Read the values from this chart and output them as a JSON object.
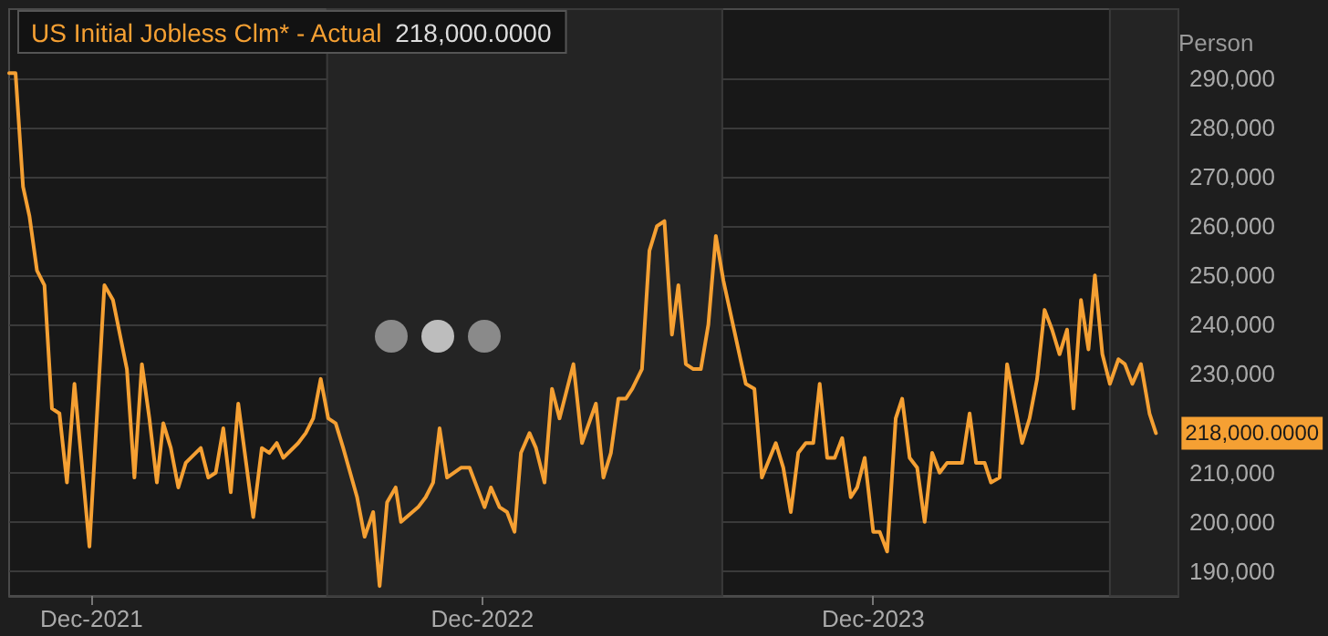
{
  "chart_data": {
    "type": "line",
    "ylabel": "Person",
    "legend": "top left",
    "grid": "y",
    "marker": "none",
    "line_style": "solid",
    "annotations": [
      "218,000.0000"
    ],
    "xlim": [
      "2021-09-15",
      "2024-09-11"
    ],
    "xticks": [
      {
        "value": "2021-12-01",
        "label": "Dec-2021"
      },
      {
        "value": "2022-12-01",
        "label": "Dec-2022"
      },
      {
        "value": "2023-12-01",
        "label": "Dec-2023"
      }
    ],
    "ylim": [
      185000,
      304000
    ],
    "yticks": [
      {
        "value": 190000,
        "label": "190,000"
      },
      {
        "value": 200000,
        "label": "200,000"
      },
      {
        "value": 210000,
        "label": "210,000"
      },
      {
        "value": 220000,
        "label": null
      },
      {
        "value": 230000,
        "label": "230,000"
      },
      {
        "value": 240000,
        "label": "240,000"
      },
      {
        "value": 250000,
        "label": "250,000"
      },
      {
        "value": 260000,
        "label": "260,000"
      },
      {
        "value": 270000,
        "label": "270,000"
      },
      {
        "value": 280000,
        "label": "280,000"
      },
      {
        "value": 290000,
        "label": "290,000"
      }
    ],
    "bands": [
      {
        "axis": "x",
        "from": "2022-07-09",
        "to": "2023-07-13",
        "color": "#242424"
      },
      {
        "axis": "x",
        "from": "2024-07-09",
        "to": "2024-09-11",
        "color": "#242424"
      }
    ],
    "series": [
      {
        "name": "US Initial Jobless Clm* - Actual",
        "color": "#f5a033",
        "x": [
          "2021-09-15",
          "2021-09-21",
          "2021-09-28",
          "2021-10-04",
          "2021-10-11",
          "2021-10-18",
          "2021-10-25",
          "2021-11-01",
          "2021-11-08",
          "2021-11-15",
          "2021-11-29",
          "2021-12-13",
          "2021-12-21",
          "2022-01-03",
          "2022-01-10",
          "2022-01-17",
          "2022-01-24",
          "2022-01-31",
          "2022-02-06",
          "2022-02-13",
          "2022-02-20",
          "2022-02-27",
          "2022-03-13",
          "2022-03-20",
          "2022-03-27",
          "2022-04-03",
          "2022-04-10",
          "2022-04-17",
          "2022-05-01",
          "2022-05-09",
          "2022-05-16",
          "2022-05-23",
          "2022-05-29",
          "2022-06-12",
          "2022-06-19",
          "2022-06-26",
          "2022-07-03",
          "2022-07-10",
          "2022-07-17",
          "2022-07-24",
          "2022-08-06",
          "2022-08-13",
          "2022-08-21",
          "2022-08-27",
          "2022-09-03",
          "2022-09-11",
          "2022-09-16",
          "2022-10-02",
          "2022-10-09",
          "2022-10-16",
          "2022-10-22",
          "2022-10-29",
          "2022-11-11",
          "2022-11-19",
          "2022-12-03",
          "2022-12-09",
          "2022-12-17",
          "2022-12-24",
          "2022-12-31",
          "2023-01-06",
          "2023-01-14",
          "2023-01-20",
          "2023-01-28",
          "2023-02-04",
          "2023-02-11",
          "2023-02-24",
          "2023-03-04",
          "2023-03-17",
          "2023-03-24",
          "2023-03-31",
          "2023-04-07",
          "2023-04-14",
          "2023-04-20",
          "2023-04-29",
          "2023-05-06",
          "2023-05-13",
          "2023-05-20",
          "2023-05-27",
          "2023-06-02",
          "2023-06-09",
          "2023-06-16",
          "2023-06-23",
          "2023-06-30",
          "2023-07-07",
          "2023-07-14",
          "2023-08-04",
          "2023-08-12",
          "2023-08-19",
          "2023-09-01",
          "2023-09-08",
          "2023-09-15",
          "2023-09-22",
          "2023-09-29",
          "2023-10-06",
          "2023-10-12",
          "2023-10-19",
          "2023-10-26",
          "2023-11-02",
          "2023-11-10",
          "2023-11-16",
          "2023-11-23",
          "2023-12-01",
          "2023-12-07",
          "2023-12-14",
          "2023-12-22",
          "2023-12-28",
          "2024-01-04",
          "2024-01-11",
          "2024-01-18",
          "2024-01-25",
          "2024-02-01",
          "2024-02-08",
          "2024-02-22",
          "2024-02-29",
          "2024-03-06",
          "2024-03-14",
          "2024-03-20",
          "2024-03-28",
          "2024-04-04",
          "2024-04-18",
          "2024-04-25",
          "2024-05-02",
          "2024-05-09",
          "2024-05-16",
          "2024-05-23",
          "2024-05-30",
          "2024-06-05",
          "2024-06-12",
          "2024-06-19",
          "2024-06-25",
          "2024-07-02",
          "2024-07-09",
          "2024-07-17",
          "2024-07-23",
          "2024-07-30",
          "2024-08-07",
          "2024-08-15",
          "2024-08-21"
        ],
        "values": [
          291000,
          291000,
          268000,
          262000,
          251000,
          248000,
          223000,
          222000,
          208000,
          228000,
          195000,
          248000,
          245000,
          231000,
          209000,
          232000,
          221000,
          208000,
          220000,
          215000,
          207000,
          212000,
          215000,
          209000,
          210000,
          219000,
          206000,
          224000,
          201000,
          215000,
          214000,
          216000,
          213000,
          216000,
          218000,
          221000,
          229000,
          221000,
          220000,
          215000,
          205000,
          197000,
          202000,
          187000,
          204000,
          207000,
          200000,
          203000,
          205000,
          208000,
          219000,
          209000,
          211000,
          211000,
          203000,
          207000,
          203000,
          202000,
          198000,
          214000,
          218000,
          215000,
          208000,
          227000,
          221000,
          232000,
          216000,
          224000,
          209000,
          214000,
          225000,
          225000,
          227000,
          231000,
          255000,
          260000,
          261000,
          238000,
          248000,
          232000,
          231000,
          231000,
          240000,
          258000,
          249000,
          228000,
          227000,
          209000,
          216000,
          211000,
          202000,
          214000,
          216000,
          216000,
          228000,
          213000,
          213000,
          217000,
          205000,
          207000,
          213000,
          198000,
          198000,
          194000,
          221000,
          225000,
          213000,
          211000,
          200000,
          214000,
          210000,
          212000,
          212000,
          222000,
          212000,
          212000,
          208000,
          209000,
          232000,
          216000,
          221000,
          229000,
          243000,
          239000,
          234000,
          239000,
          223000,
          245000,
          235000,
          250000,
          234000,
          228000,
          233000,
          232000,
          228000,
          232000,
          222000,
          218000
        ],
        "value_labels": [
          null,
          null,
          null,
          null,
          null,
          null,
          null,
          null,
          null,
          null,
          null,
          null,
          null,
          null,
          null,
          null,
          null,
          null,
          null,
          null,
          null,
          null,
          null,
          null,
          null,
          null,
          null,
          null,
          null,
          null,
          null,
          null,
          null,
          null,
          null,
          null,
          null,
          null,
          null,
          null,
          null,
          null,
          null,
          null,
          null,
          null,
          null,
          null,
          null,
          null,
          null,
          null,
          null,
          null,
          null,
          null,
          null,
          null,
          null,
          null,
          null,
          null,
          null,
          null,
          null,
          null,
          null,
          null,
          null,
          null,
          null,
          null,
          null,
          null,
          null,
          null,
          null,
          null,
          null,
          null,
          null,
          null,
          null,
          null,
          null,
          null,
          null,
          null,
          null,
          null,
          null,
          null,
          null,
          null,
          null,
          null,
          null,
          null,
          null,
          null,
          null,
          null,
          null,
          null,
          null,
          null,
          null,
          null,
          null,
          null,
          null,
          null,
          null,
          null,
          null,
          null,
          null,
          null,
          null,
          null,
          null,
          null,
          null,
          null,
          null,
          null,
          null,
          null,
          null,
          null,
          null,
          null,
          null,
          null,
          null,
          null,
          null,
          "218,000.0000"
        ]
      }
    ]
  }
}
